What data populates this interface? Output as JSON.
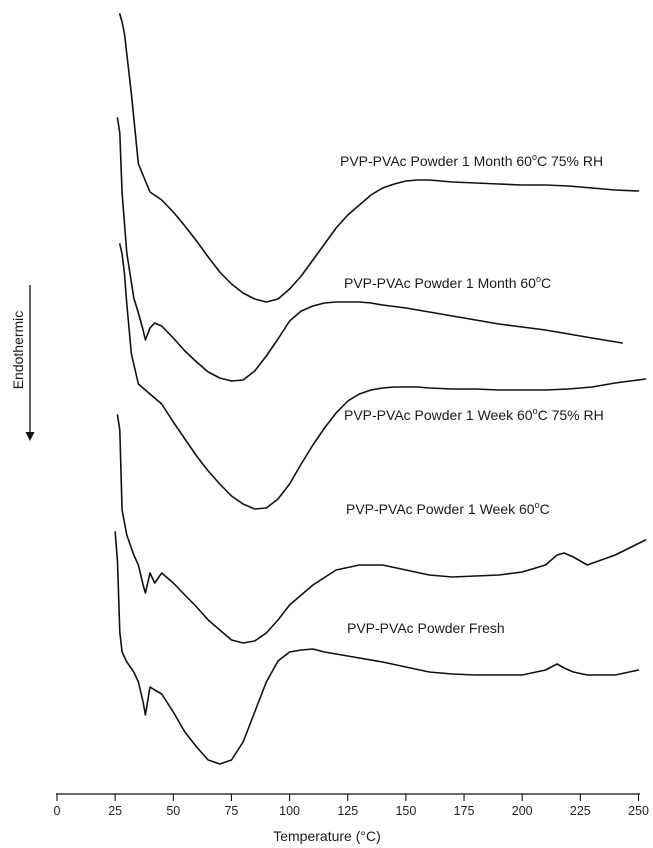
{
  "chart_data": {
    "type": "line",
    "xlabel": "Temperature (°C)",
    "ylabel": "Endothermic",
    "xlim": [
      0,
      255
    ],
    "xticks": [
      0,
      25,
      50,
      75,
      100,
      125,
      150,
      175,
      200,
      225,
      250
    ],
    "grid": false,
    "series": [
      {
        "name": "PVP-PVAc Powder 1 Month 60°C 75% RH",
        "label_parts": [
          "PVP-PVAc Powder 1 Month 60",
          "o",
          "C 75% RH"
        ],
        "x": [
          27,
          28,
          29,
          30,
          32,
          35,
          40,
          45,
          50,
          55,
          60,
          65,
          70,
          75,
          80,
          85,
          90,
          95,
          100,
          105,
          110,
          115,
          120,
          125,
          130,
          135,
          140,
          145,
          150,
          155,
          160,
          170,
          180,
          190,
          200,
          210,
          220,
          230,
          240,
          250
        ],
        "y": [
          0,
          8,
          20,
          40,
          80,
          150,
          178,
          186,
          198,
          212,
          227,
          243,
          258,
          270,
          279,
          285,
          288,
          285,
          275,
          262,
          246,
          230,
          214,
          201,
          191,
          181,
          174,
          170,
          167,
          166,
          166,
          168,
          169,
          170,
          171,
          171,
          172,
          174,
          176,
          177
        ]
      },
      {
        "name": "PVP-PVAc Powder 1 Month 60°C",
        "label_parts": [
          "PVP-PVAc Powder 1 Month 60",
          "o",
          "C"
        ],
        "x": [
          26,
          27,
          28,
          30,
          33,
          35,
          37,
          38,
          40,
          42,
          45,
          50,
          55,
          60,
          65,
          70,
          75,
          80,
          85,
          90,
          95,
          100,
          105,
          110,
          115,
          120,
          125,
          130,
          135,
          140,
          150,
          160,
          170,
          180,
          190,
          200,
          210,
          220,
          230,
          243
        ],
        "y": [
          0,
          15,
          75,
          135,
          180,
          195,
          212,
          222,
          210,
          205,
          208,
          220,
          233,
          244,
          254,
          260,
          263,
          262,
          253,
          238,
          221,
          203,
          193,
          188,
          185,
          184,
          184,
          184,
          185,
          187,
          190,
          194,
          198,
          202,
          206,
          209,
          212,
          216,
          220,
          225
        ]
      },
      {
        "name": "PVP-PVAc Powder 1 Week 60°C 75% RH",
        "label_parts": [
          "PVP-PVAc Powder 1 Week 60",
          "o",
          "C 75% RH"
        ],
        "x": [
          27,
          28,
          29,
          30,
          32,
          35,
          40,
          45,
          50,
          55,
          60,
          65,
          70,
          75,
          80,
          85,
          90,
          95,
          100,
          105,
          110,
          115,
          120,
          125,
          130,
          135,
          140,
          145,
          150,
          155,
          160,
          170,
          180,
          190,
          200,
          210,
          220,
          230,
          240,
          253
        ],
        "y": [
          0,
          10,
          30,
          60,
          110,
          140,
          150,
          160,
          178,
          195,
          212,
          227,
          240,
          252,
          260,
          265,
          264,
          255,
          240,
          220,
          201,
          184,
          169,
          157,
          150,
          146,
          144,
          143,
          143,
          143,
          144,
          145,
          145,
          146,
          146,
          146,
          145,
          143,
          139,
          135
        ]
      },
      {
        "name": "PVP-PVAc Powder 1 Week 60°C",
        "label_parts": [
          "PVP-PVAc Powder 1 Week 60",
          "o",
          "C"
        ],
        "x": [
          26,
          27,
          28,
          30,
          33,
          35,
          37,
          38,
          40,
          42,
          45,
          50,
          55,
          60,
          65,
          70,
          75,
          80,
          85,
          90,
          95,
          100,
          110,
          120,
          130,
          140,
          150,
          160,
          170,
          180,
          190,
          200,
          210,
          215,
          218,
          222,
          228,
          240,
          253
        ],
        "y": [
          0,
          15,
          95,
          120,
          140,
          150,
          170,
          178,
          158,
          168,
          158,
          168,
          180,
          192,
          205,
          215,
          225,
          228,
          226,
          218,
          205,
          190,
          170,
          155,
          150,
          150,
          155,
          160,
          162,
          161,
          160,
          157,
          150,
          140,
          138,
          142,
          150,
          140,
          125
        ]
      },
      {
        "name": "PVP-PVAc Powder Fresh",
        "label_parts": [
          "PVP-PVAc Powder Fresh"
        ],
        "x": [
          25,
          26,
          27,
          28,
          30,
          33,
          35,
          37,
          38,
          40,
          42,
          45,
          50,
          55,
          60,
          65,
          70,
          75,
          80,
          85,
          90,
          95,
          100,
          105,
          110,
          115,
          120,
          130,
          140,
          150,
          160,
          170,
          180,
          190,
          200,
          210,
          215,
          218,
          222,
          228,
          240,
          250
        ],
        "y": [
          0,
          30,
          100,
          120,
          130,
          140,
          150,
          170,
          183,
          155,
          158,
          162,
          180,
          200,
          215,
          228,
          232,
          228,
          210,
          180,
          150,
          129,
          120,
          118,
          117,
          120,
          122,
          126,
          130,
          135,
          140,
          142,
          143,
          143,
          143,
          138,
          132,
          136,
          140,
          143,
          143,
          138
        ]
      }
    ]
  }
}
